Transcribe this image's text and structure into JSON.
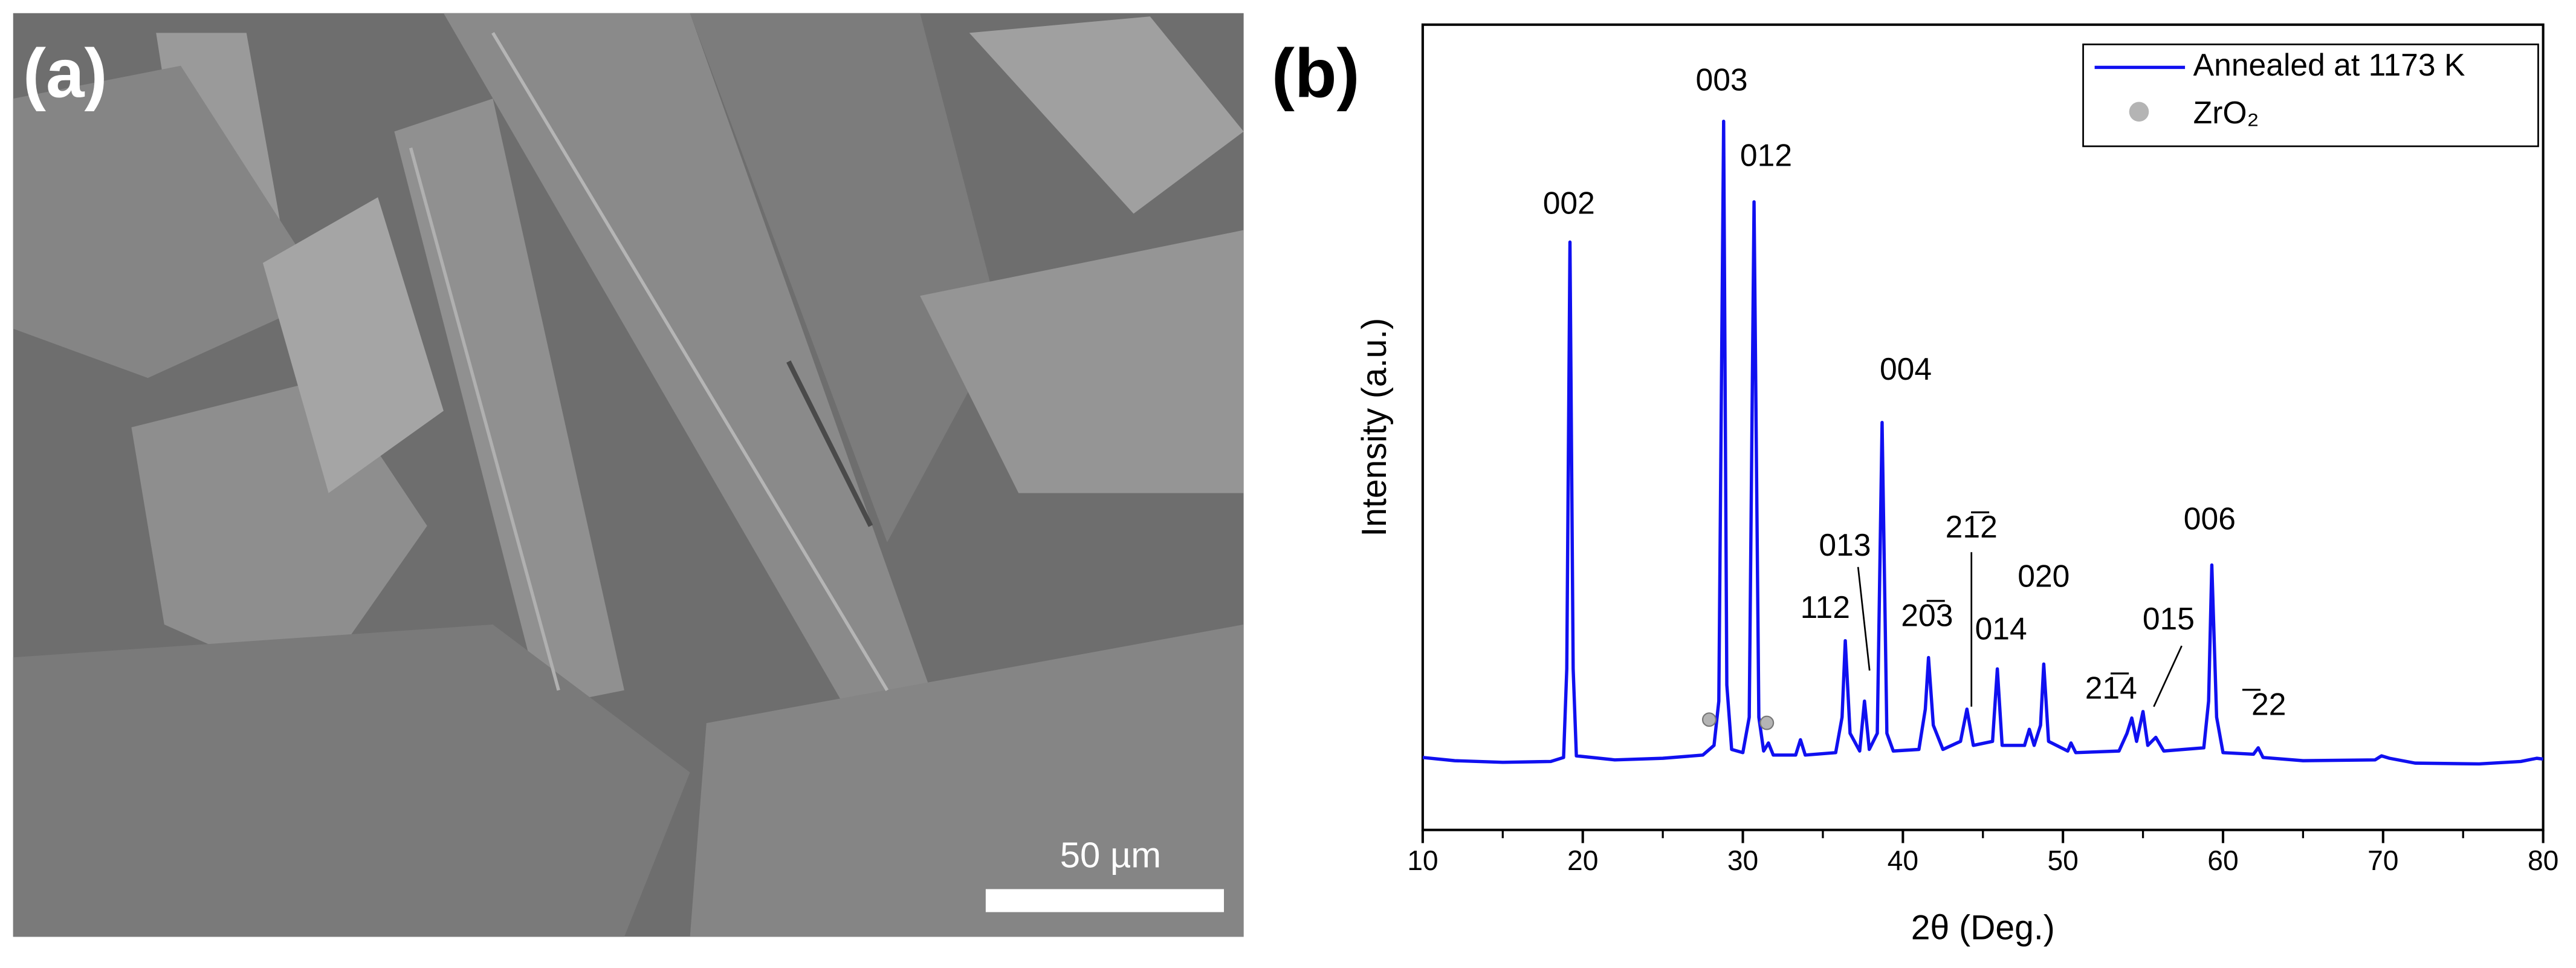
{
  "image_panel": {
    "label": "(a)",
    "scale_bar": "50 µm"
  },
  "chart_data": {
    "type": "line",
    "panel_label": "(b)",
    "xlabel": "2θ (Deg.)",
    "ylabel": "Intensity (a.u.)",
    "xlim": [
      10,
      80
    ],
    "xticks": [
      10,
      20,
      30,
      40,
      50,
      60,
      70,
      80
    ],
    "xminorticks": [
      15,
      25,
      35,
      45,
      55,
      65,
      75
    ],
    "ylim": [
      0,
      100
    ],
    "legend": "upper-right",
    "x": [
      10,
      12,
      15,
      18,
      18.8,
      19.0,
      19.2,
      19.4,
      19.6,
      22,
      25,
      27.5,
      28.2,
      28.5,
      28.8,
      29.0,
      29.3,
      30.0,
      30.4,
      30.7,
      31.0,
      31.3,
      31.6,
      31.9,
      33.3,
      33.6,
      33.9,
      35.8,
      36.2,
      36.4,
      36.7,
      37.3,
      37.6,
      37.9,
      38.4,
      38.7,
      39.0,
      39.4,
      41.0,
      41.4,
      41.6,
      41.9,
      42.5,
      43.6,
      44.0,
      44.4,
      45.6,
      45.9,
      46.2,
      47.6,
      47.9,
      48.2,
      48.6,
      48.8,
      49.1,
      50.3,
      50.5,
      50.8,
      53.5,
      54.0,
      54.3,
      54.6,
      55.0,
      55.3,
      55.8,
      56.3,
      58.8,
      59.1,
      59.3,
      59.6,
      60.0,
      61.9,
      62.2,
      62.5,
      65,
      69.5,
      69.9,
      70.4,
      72,
      76,
      78.6,
      79.6,
      80
    ],
    "series": [
      {
        "name": "Annealed at 1173 K",
        "color": "#1010f0",
        "values": [
          9.0,
          8.6,
          8.4,
          8.5,
          9.0,
          20,
          73,
          20,
          9.2,
          8.7,
          8.9,
          9.3,
          10.5,
          16,
          88,
          18,
          10,
          9.6,
          14,
          78,
          14,
          9.8,
          10.8,
          9.3,
          9.3,
          11.2,
          9.3,
          9.6,
          14,
          23.5,
          12,
          9.8,
          16,
          10,
          12,
          50.6,
          12,
          9.8,
          10,
          15,
          21.4,
          13,
          10,
          11,
          15,
          10.5,
          11,
          20,
          10.5,
          10.5,
          12.5,
          10.5,
          13,
          20.6,
          11,
          9.8,
          10.8,
          9.6,
          9.8,
          12,
          13.9,
          11,
          14.7,
          10.5,
          11.5,
          9.8,
          10.2,
          16,
          32.9,
          14,
          9.6,
          9.4,
          10.2,
          9.0,
          8.6,
          8.7,
          9.2,
          8.9,
          8.3,
          8.2,
          8.5,
          8.9,
          8.8
        ]
      },
      {
        "name": "ZrO₂",
        "color": "#b4b4b4",
        "marker": "circle",
        "x": [
          27.9,
          31.5
        ],
        "values": [
          13.7,
          13.3
        ]
      }
    ],
    "annotations": [
      "002",
      "003",
      "012",
      "004",
      "013",
      "112",
      "20̅3",
      "21̅2",
      "014",
      "020",
      "21̅4",
      "015",
      "006",
      "̅22"
    ]
  }
}
